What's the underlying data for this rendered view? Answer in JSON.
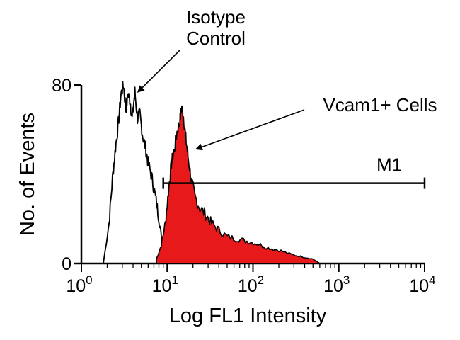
{
  "chart_data": {
    "type": "area",
    "title": "",
    "xlabel": "Log FL1 Intensity",
    "ylabel": "No. of Events",
    "xscale": "log",
    "xlim": [
      1,
      10000
    ],
    "ylim": [
      0,
      80
    ],
    "y_ticks": [
      {
        "value": 0,
        "label": "0"
      },
      {
        "value": 80,
        "label": "80"
      }
    ],
    "x_ticks": [
      {
        "value": 1,
        "base": "10",
        "exp": "0"
      },
      {
        "value": 10,
        "base": "10",
        "exp": "1"
      },
      {
        "value": 100,
        "base": "10",
        "exp": "2"
      },
      {
        "value": 1000,
        "base": "10",
        "exp": "3"
      },
      {
        "value": 10000,
        "base": "10",
        "exp": "4"
      }
    ],
    "grid": false,
    "legend": "none",
    "series": [
      {
        "name": "Isotype Control",
        "style": "outline",
        "color": "#000000",
        "x": [
          1.8,
          2.1,
          2.3,
          2.5,
          2.7,
          2.9,
          3.1,
          3.3,
          3.5,
          3.7,
          3.9,
          4.2,
          4.5,
          4.8,
          5.2,
          5.6,
          6.0,
          6.6,
          7.2,
          7.9,
          8.6,
          9.4,
          10.3
        ],
        "y": [
          0,
          18,
          38,
          52,
          63,
          76,
          80,
          69,
          76,
          73,
          65,
          77,
          65,
          67,
          57,
          52,
          45,
          39,
          31,
          22,
          11,
          3,
          0
        ]
      },
      {
        "name": "Vcam1+ Cells",
        "style": "filled",
        "color": "#e8191b",
        "x": [
          7.5,
          8.5,
          9.5,
          10.5,
          11.2,
          12.0,
          13.0,
          14.0,
          14.8,
          15.5,
          16.5,
          17.5,
          19.0,
          21.0,
          24.0,
          28.0,
          33.0,
          40.0,
          50.0,
          65.0,
          85.0,
          110.0,
          150.0,
          200.0,
          280.0,
          380.0,
          500.0,
          600.0
        ],
        "y": [
          2,
          8,
          18,
          35,
          45,
          50,
          59,
          64,
          70,
          66,
          56,
          48,
          38,
          30,
          25,
          22,
          18,
          15,
          12,
          11,
          10,
          9,
          7,
          6,
          4,
          3,
          2,
          0
        ]
      }
    ],
    "marker": {
      "label": "M1",
      "x_start": 9,
      "x_end": 10000,
      "y": 36
    },
    "annotations": [
      {
        "text_lines": [
          "Isotype",
          "Control"
        ],
        "points_to": {
          "x": 4.6,
          "y": 77
        }
      },
      {
        "text_lines": [
          "Vcam1+ Cells"
        ],
        "points_to": {
          "x": 17.5,
          "y": 52
        }
      }
    ]
  }
}
